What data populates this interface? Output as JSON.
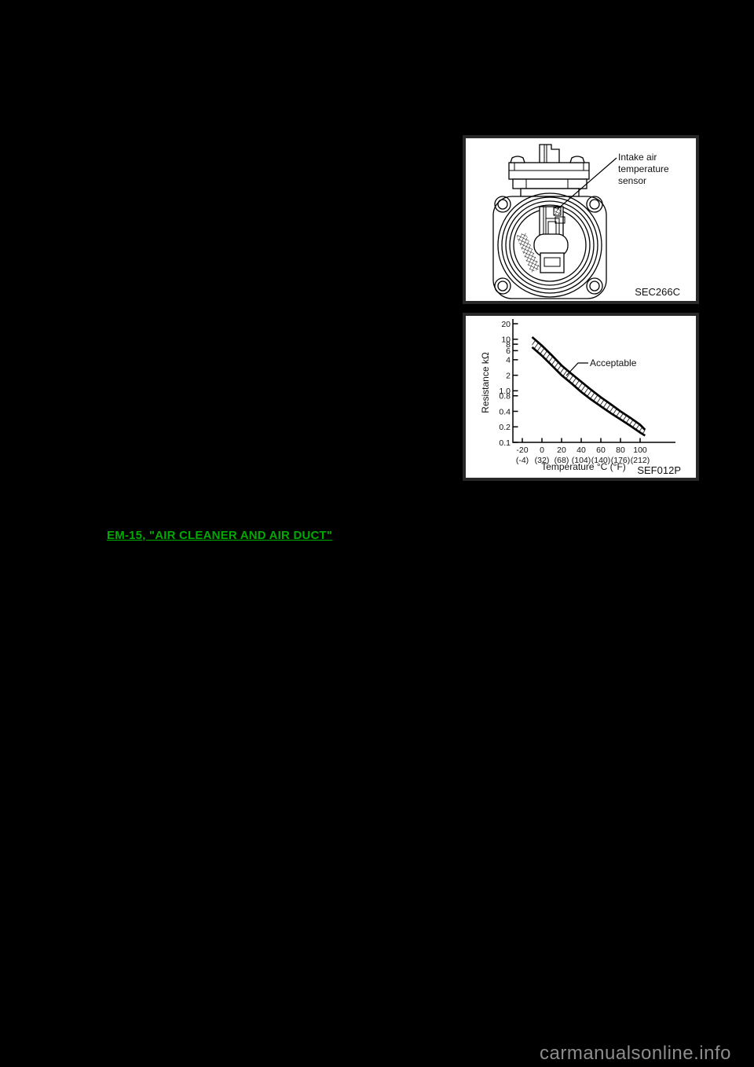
{
  "page": {
    "background_color": "#000000",
    "reference_link": {
      "text": "EM-15, \"AIR CLEANER AND AIR DUCT\"",
      "color": "#00aa00"
    },
    "watermark_text": "carmanualsonline.info"
  },
  "sensor_figure": {
    "callout_lines": [
      "Intake air",
      "temperature",
      "sensor"
    ],
    "figure_code": "SEC266C"
  },
  "chart_data": {
    "type": "area",
    "title": "",
    "ylabel": "Resistance kΩ",
    "xlabel": "Temperature °C (°F)",
    "y_scale": "log",
    "ylim": [
      0.1,
      20
    ],
    "xlim": [
      -30,
      135
    ],
    "grid": false,
    "y_tick_labels": [
      "20",
      "10",
      "8",
      "6",
      "4",
      "2",
      "1.0",
      "0.8",
      "0.4",
      "0.2",
      "0.1"
    ],
    "x_tick_labels_c": [
      "-20",
      "0",
      "20",
      "40",
      "60",
      "80",
      "100"
    ],
    "x_tick_labels_f": [
      "(-4)",
      "(32)",
      "(68)",
      "(104)",
      "(140)",
      "(176)",
      "(212)"
    ],
    "band_label": "Acceptable",
    "figure_code": "SEF012P",
    "series": [
      {
        "name": "acceptable-upper",
        "x": [
          -10,
          0,
          10,
          20,
          30,
          40,
          50,
          60,
          70,
          80,
          90,
          100,
          105
        ],
        "y": [
          11,
          7.5,
          4.9,
          3.1,
          2.15,
          1.5,
          1.05,
          0.75,
          0.55,
          0.4,
          0.3,
          0.22,
          0.175
        ]
      },
      {
        "name": "acceptable-lower",
        "x": [
          -10,
          0,
          10,
          20,
          30,
          40,
          50,
          60,
          70,
          80,
          90,
          100,
          105
        ],
        "y": [
          7,
          4.8,
          3.1,
          2,
          1.4,
          0.95,
          0.68,
          0.5,
          0.37,
          0.28,
          0.21,
          0.155,
          0.135
        ]
      }
    ]
  }
}
